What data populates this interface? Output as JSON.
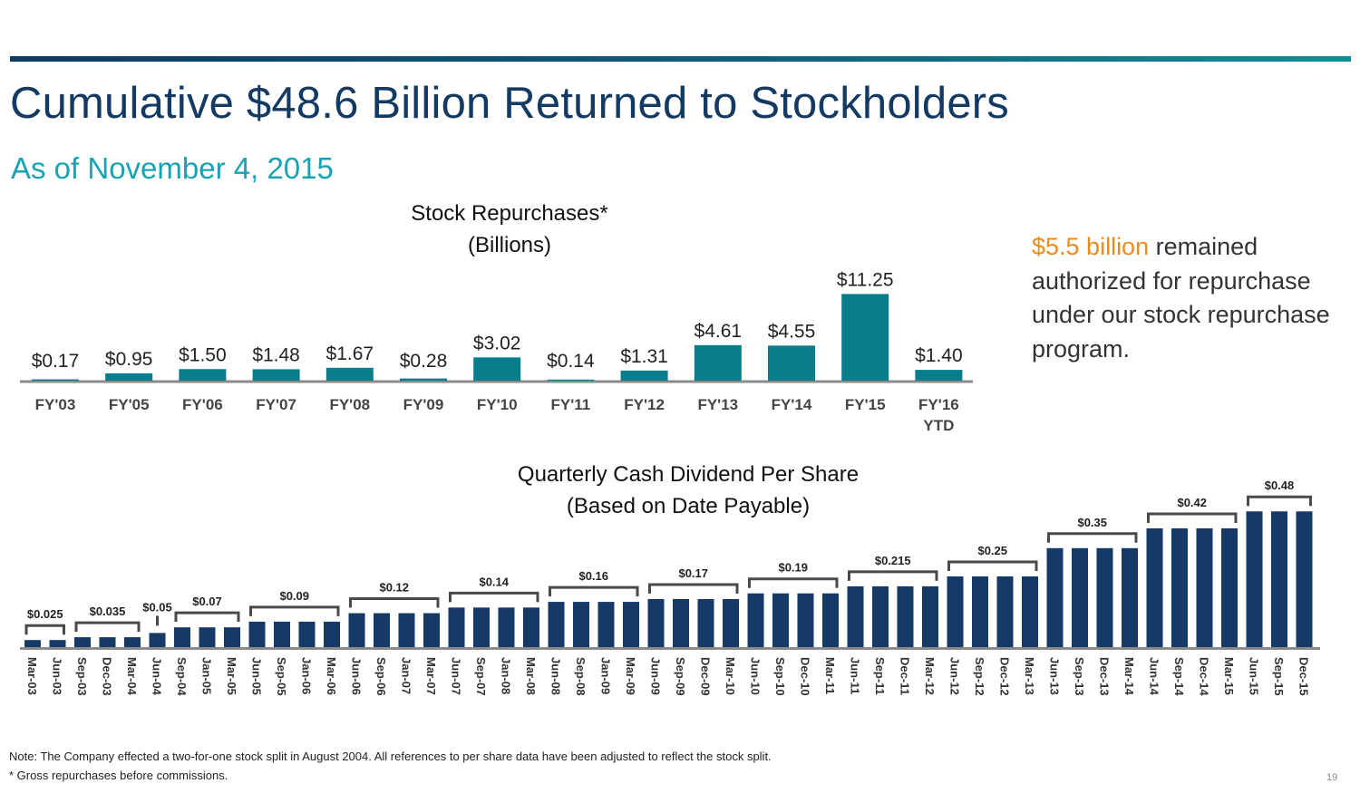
{
  "header": {
    "title": "Cumulative $48.6 Billion Returned to Stockholders",
    "subtitle": "As of November 4, 2015"
  },
  "callout": {
    "highlight": "$5.5 billion",
    "text": " remained authorized for repurchase under our stock repurchase program.",
    "highlight_color": "#ee8a1c"
  },
  "colors": {
    "repurchase_bar": "#0a7d8a",
    "dividend_bar": "#163a66",
    "baseline": "#8a8a8a",
    "bracket": "#4a4a4a",
    "title": "#123a63",
    "subtitle": "#18a3b4"
  },
  "chart_data": [
    {
      "type": "bar",
      "title": "Stock Repurchases*",
      "subtitle": "(Billions)",
      "xlabel": "",
      "ylabel": "",
      "categories": [
        "FY'03",
        "FY'05",
        "FY'06",
        "FY'07",
        "FY'08",
        "FY'09",
        "FY'10",
        "FY'11",
        "FY'12",
        "FY'13",
        "FY'14",
        "FY'15",
        "FY'16 YTD"
      ],
      "values": [
        0.17,
        0.95,
        1.5,
        1.48,
        1.67,
        0.28,
        3.02,
        0.14,
        1.31,
        4.61,
        4.55,
        11.25,
        1.4
      ],
      "data_labels": [
        "$0.17",
        "$0.95",
        "$1.50",
        "$1.48",
        "$1.67",
        "$0.28",
        "$3.02",
        "$0.14",
        "$1.31",
        "$4.61",
        "$4.55",
        "$11.25",
        "$1.40"
      ],
      "ylim": [
        0,
        12
      ],
      "grid": false,
      "legend": "none"
    },
    {
      "type": "bar",
      "title": "Quarterly Cash Dividend Per Share",
      "subtitle": "(Based on Date Payable)",
      "xlabel": "",
      "ylabel": "",
      "categories": [
        "Mar-03",
        "Jun-03",
        "Sep-03",
        "Dec-03",
        "Mar-04",
        "Jun-04",
        "Sep-04",
        "Jan-05",
        "Mar-05",
        "Jun-05",
        "Sep-05",
        "Jan-06",
        "Mar-06",
        "Jun-06",
        "Sep-06",
        "Jan-07",
        "Mar-07",
        "Jun-07",
        "Sep-07",
        "Jan-08",
        "Mar-08",
        "Jun-08",
        "Sep-08",
        "Jan-09",
        "Mar-09",
        "Jun-09",
        "Sep-09",
        "Dec-09",
        "Mar-10",
        "Jun-10",
        "Sep-10",
        "Dec-10",
        "Mar-11",
        "Jun-11",
        "Sep-11",
        "Dec-11",
        "Mar-12",
        "Jun-12",
        "Sep-12",
        "Dec-12",
        "Mar-13",
        "Jun-13",
        "Sep-13",
        "Dec-13",
        "Mar-14",
        "Jun-14",
        "Sep-14",
        "Dec-14",
        "Mar-15",
        "Jun-15",
        "Sep-15",
        "Dec-15"
      ],
      "values": [
        0.025,
        0.025,
        0.035,
        0.035,
        0.035,
        0.05,
        0.07,
        0.07,
        0.07,
        0.09,
        0.09,
        0.09,
        0.09,
        0.12,
        0.12,
        0.12,
        0.12,
        0.14,
        0.14,
        0.14,
        0.14,
        0.16,
        0.16,
        0.16,
        0.16,
        0.17,
        0.17,
        0.17,
        0.17,
        0.19,
        0.19,
        0.19,
        0.19,
        0.215,
        0.215,
        0.215,
        0.215,
        0.25,
        0.25,
        0.25,
        0.25,
        0.35,
        0.35,
        0.35,
        0.35,
        0.42,
        0.42,
        0.42,
        0.42,
        0.48,
        0.48,
        0.48
      ],
      "groups": [
        {
          "label": "$0.025",
          "start": 0,
          "end": 1
        },
        {
          "label": "$0.035",
          "start": 2,
          "end": 4
        },
        {
          "label": "$0.05",
          "start": 5,
          "end": 5
        },
        {
          "label": "$0.07",
          "start": 6,
          "end": 8
        },
        {
          "label": "$0.09",
          "start": 9,
          "end": 12
        },
        {
          "label": "$0.12",
          "start": 13,
          "end": 16
        },
        {
          "label": "$0.14",
          "start": 17,
          "end": 20
        },
        {
          "label": "$0.16",
          "start": 21,
          "end": 24
        },
        {
          "label": "$0.17",
          "start": 25,
          "end": 28
        },
        {
          "label": "$0.19",
          "start": 29,
          "end": 32
        },
        {
          "label": "$0.215",
          "start": 33,
          "end": 36
        },
        {
          "label": "$0.25",
          "start": 37,
          "end": 40
        },
        {
          "label": "$0.35",
          "start": 41,
          "end": 44
        },
        {
          "label": "$0.42",
          "start": 45,
          "end": 48
        },
        {
          "label": "$0.48",
          "start": 49,
          "end": 51
        }
      ],
      "ylim": [
        0,
        0.5
      ],
      "grid": false,
      "legend": "none"
    }
  ],
  "footer": {
    "note": "Note:  The Company effected a two-for-one stock split in August 2004. All references to per share data have been adjusted to reflect the stock split.",
    "footnote": "* Gross repurchases before commissions.",
    "page_number": "19"
  }
}
